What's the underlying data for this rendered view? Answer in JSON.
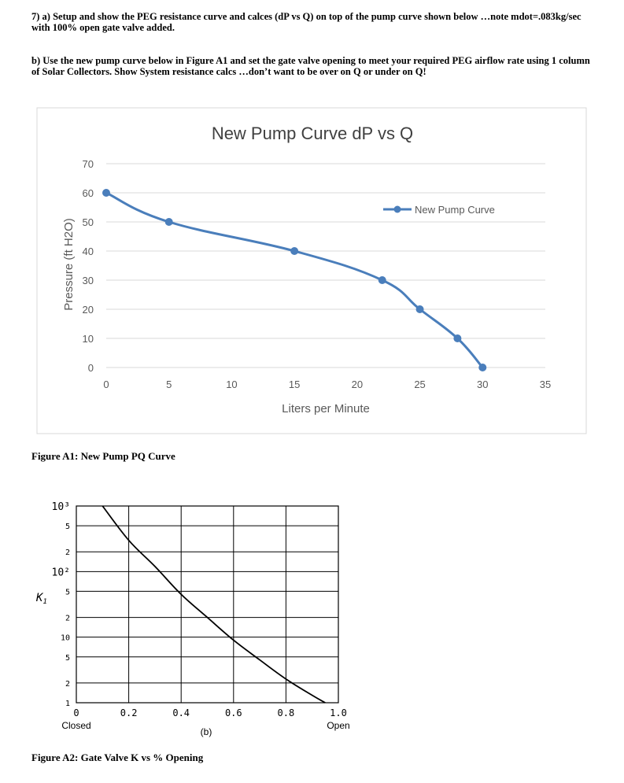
{
  "question": {
    "part_a": "7) a) Setup and show the PEG resistance curve and calces (dP vs Q) on top of the pump curve shown below …note mdot=.083kg/sec with 100% open gate valve added.",
    "part_b": "b) Use the new pump curve below in Figure A1 and set the gate valve opening to meet your required PEG airflow rate using 1 column of Solar Collectors. Show System resistance calcs …don’t want to be over on Q or under on Q!"
  },
  "figure_a1_caption": "Figure A1: New Pump PQ Curve",
  "figure_a2_caption": "Figure A2: Gate Valve K vs % Opening",
  "chart_data": [
    {
      "type": "line",
      "title": "New Pump Curve dP vs Q",
      "xlabel": "Liters per Minute",
      "ylabel": "Pressure (ft H2O)",
      "xlim": [
        0,
        35
      ],
      "ylim": [
        0,
        70
      ],
      "x_ticks": [
        "0",
        "5",
        "10",
        "15",
        "20",
        "25",
        "30",
        "35"
      ],
      "y_ticks": [
        "0",
        "10",
        "20",
        "30",
        "40",
        "50",
        "60",
        "70"
      ],
      "grid": "horizontal",
      "legend": "right",
      "series": [
        {
          "name": "New Pump Curve",
          "color": "#4a7ebb",
          "x": [
            0,
            5,
            15,
            22,
            25,
            28,
            30
          ],
          "y": [
            60,
            50,
            40,
            30,
            20,
            10,
            0
          ]
        }
      ]
    },
    {
      "type": "line",
      "xlabel": "(b)",
      "ylabel": "K_1",
      "y_scale": "log",
      "xlim": [
        0,
        1.0
      ],
      "ylim": [
        1,
        1000
      ],
      "x_ticks": [
        "0",
        "0.2",
        "0.4",
        "0.6",
        "0.8",
        "1.0"
      ],
      "x_tick_notes": {
        "0": "Closed",
        "1.0": "Open"
      },
      "y_ticks": [
        "1",
        "2",
        "5",
        "10",
        "2",
        "5",
        "10²",
        "2",
        "5",
        "10³"
      ],
      "grid": "both",
      "series": [
        {
          "x": [
            0.1,
            0.2,
            0.3,
            0.4,
            0.5,
            0.6,
            0.7,
            0.8,
            0.9,
            0.95
          ],
          "y": [
            1000,
            300,
            120,
            45,
            20,
            9,
            4.5,
            2.3,
            1.3,
            1.0
          ]
        }
      ]
    }
  ]
}
